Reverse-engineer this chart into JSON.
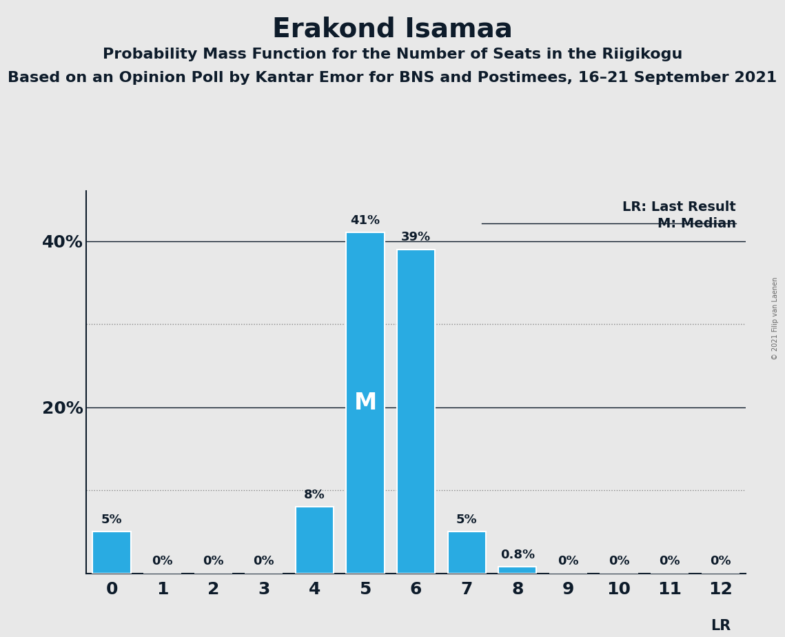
{
  "title": "Erakond Isamaa",
  "subtitle1": "Probability Mass Function for the Number of Seats in the Riigikogu",
  "subtitle2": "Based on an Opinion Poll by Kantar Emor for BNS and Postimees, 16–21 September 2021",
  "copyright": "© 2021 Filip van Laenen",
  "seats": [
    0,
    1,
    2,
    3,
    4,
    5,
    6,
    7,
    8,
    9,
    10,
    11,
    12
  ],
  "probabilities": [
    5,
    0,
    0,
    0,
    8,
    41,
    39,
    5,
    0.8,
    0,
    0,
    0,
    0
  ],
  "labels": [
    "5%",
    "0%",
    "0%",
    "0%",
    "8%",
    "41%",
    "39%",
    "5%",
    "0.8%",
    "0%",
    "0%",
    "0%",
    "0%"
  ],
  "bar_color": "#29ABE2",
  "median_seat": 5,
  "lr_seat": 12,
  "median_label": "M",
  "lr_label": "LR",
  "legend_lr": "LR: Last Result",
  "legend_m": "M: Median",
  "background_color": "#E8E8E8",
  "title_fontsize": 28,
  "subtitle1_fontsize": 16,
  "subtitle2_fontsize": 16,
  "solid_yticks": [
    20,
    40
  ],
  "dotted_ylines": [
    10,
    30
  ],
  "ylim": [
    0,
    46
  ],
  "xlim": [
    -0.5,
    12.5
  ],
  "text_color": "#0d1b2a",
  "grid_color": "#888888",
  "spine_color": "#0d1b2a"
}
